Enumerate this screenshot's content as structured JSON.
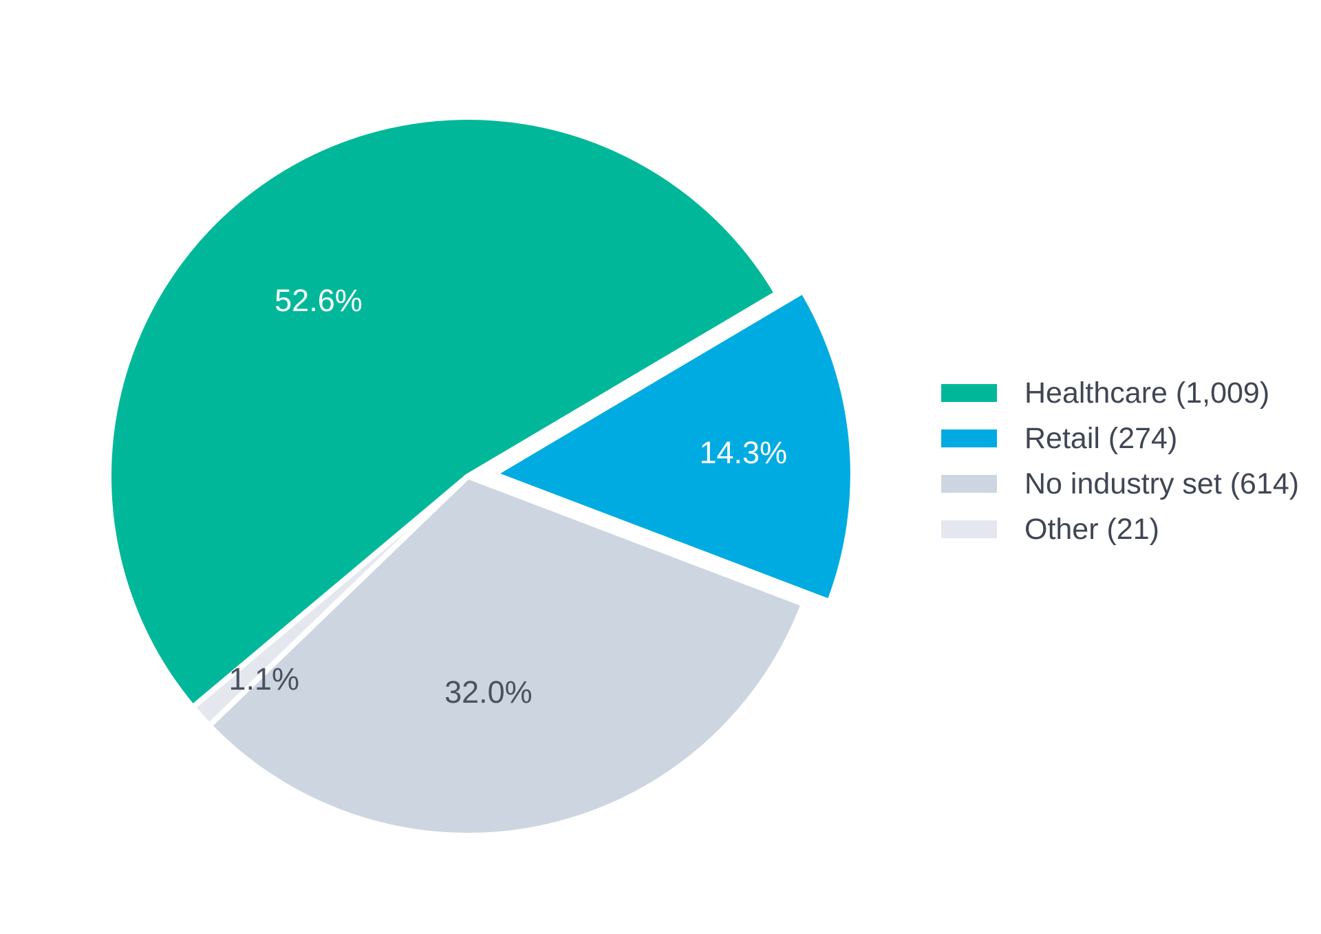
{
  "chart_data": {
    "type": "pie",
    "title": "",
    "slices": [
      {
        "name": "Healthcare",
        "value": 1009,
        "percent_label": "52.6%",
        "legend_label": "Healthcare (1,009)",
        "color": "#00b899",
        "label_color": "#ffffff",
        "exploded": false
      },
      {
        "name": "Retail",
        "value": 274,
        "percent_label": "14.3%",
        "legend_label": "Retail (274)",
        "color": "#00abe1",
        "label_color": "#ffffff",
        "exploded": true
      },
      {
        "name": "No industry set",
        "value": 614,
        "percent_label": "32.0%",
        "legend_label": "No industry set (614)",
        "color": "#cdd6e0",
        "label_color": "#4a5260",
        "exploded": false
      },
      {
        "name": "Other",
        "value": 21,
        "percent_label": "1.1%",
        "legend_label": "Other (21)",
        "color": "#e4e8ee",
        "label_color": "#4a5260",
        "exploded": false
      }
    ],
    "legend_position": "right",
    "background": "#ffffff"
  }
}
